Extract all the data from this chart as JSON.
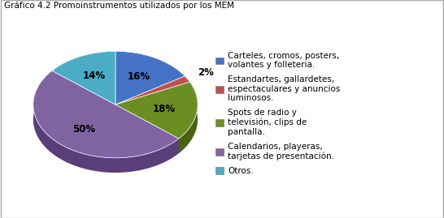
{
  "title": "Gráfico 4.2 Promoinstrumentos utilizados por los MEM",
  "slices": [
    16,
    2,
    18,
    50,
    14
  ],
  "pct_labels": [
    "16%",
    "2%",
    "18%",
    "50%",
    "14%"
  ],
  "colors": [
    "#4472C4",
    "#C0504D",
    "#6B8E23",
    "#8064A2",
    "#4BACC6"
  ],
  "dark_colors": [
    "#2E5090",
    "#8B1A1A",
    "#4A6212",
    "#5A3E7A",
    "#2A7A96"
  ],
  "legend_labels": [
    "Carteles, cromos, posters,\nvolantes y folleteria.",
    "Estandartes, gallardetes,\nespectaculares y anuncios\nluminosos.",
    "Spots de radio y\ntelevisión, clips de\npantalla.",
    "Calendarios, playeras,\ntarjetas de presentación.",
    "Otros."
  ],
  "startangle": 90,
  "background_color": "#FFFFFF",
  "title_fontsize": 7.5,
  "label_fontsize": 8.5,
  "legend_fontsize": 7.5,
  "border_color": "#AAAAAA"
}
